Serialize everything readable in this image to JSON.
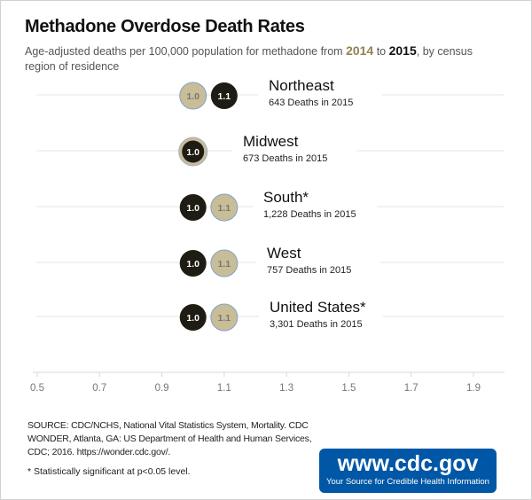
{
  "title": "Methadone Overdose Death Rates",
  "subtitle": {
    "before": "Age-adjusted deaths per 100,000 population for methadone from ",
    "year_a": "2014",
    "mid": " to ",
    "year_b": "2015",
    "after": ", by census region of residence"
  },
  "chart_data": {
    "type": "dot",
    "xlim": [
      0.5,
      1.9
    ],
    "xticks": [
      "0.5",
      "0.7",
      "0.9",
      "1.1",
      "1.3",
      "1.5",
      "1.7",
      "1.9"
    ],
    "series_colors": {
      "2014": "#c8bd97",
      "2015": "#1f1c14"
    },
    "rows": [
      {
        "region": "Northeast",
        "deaths_label": "643 Deaths in 2015",
        "v2014": 1.0,
        "v2015": 1.1
      },
      {
        "region": "Midwest",
        "deaths_label": "673 Deaths in 2015",
        "v2014": 1.0,
        "v2015": 1.0
      },
      {
        "region": "South*",
        "deaths_label": "1,228 Deaths in 2015",
        "v2014": 1.1,
        "v2015": 1.0
      },
      {
        "region": "West",
        "deaths_label": "757 Deaths in 2015",
        "v2014": 1.1,
        "v2015": 1.0
      },
      {
        "region": "United States*",
        "deaths_label": "3,301 Deaths in 2015",
        "v2014": 1.1,
        "v2015": 1.0
      }
    ]
  },
  "source": "SOURCE: CDC/NCHS, National Vital Statistics System, Mortality. CDC WONDER, Atlanta, GA: US Department of Health and Human Services, CDC; 2016. https://wonder.cdc.gov/.",
  "note": "* Statistically significant at p<0.05 level.",
  "logo": {
    "url": "www.cdc.gov",
    "tagline": "Your Source for Credible Health Information"
  }
}
